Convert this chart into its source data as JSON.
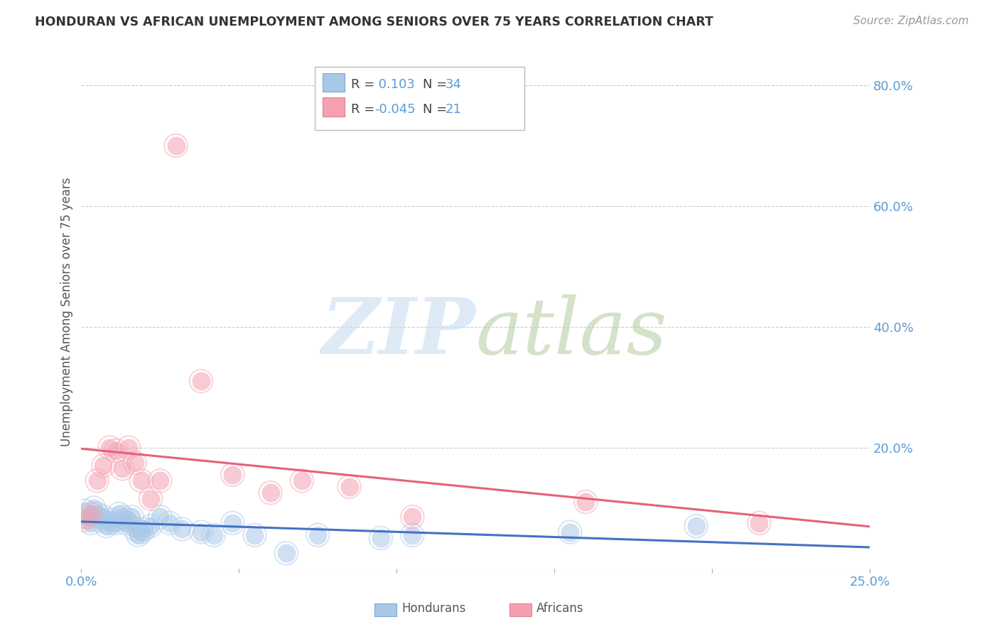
{
  "title": "HONDURAN VS AFRICAN UNEMPLOYMENT AMONG SENIORS OVER 75 YEARS CORRELATION CHART",
  "source": "Source: ZipAtlas.com",
  "ylabel": "Unemployment Among Seniors over 75 years",
  "xlim": [
    0.0,
    0.25
  ],
  "ylim": [
    0.0,
    0.85
  ],
  "xticks": [
    0.0,
    0.05,
    0.1,
    0.15,
    0.2,
    0.25
  ],
  "xticklabels": [
    "0.0%",
    "",
    "",
    "",
    "",
    "25.0%"
  ],
  "yticks": [
    0.0,
    0.2,
    0.4,
    0.6,
    0.8
  ],
  "yticklabels": [
    "",
    "20.0%",
    "40.0%",
    "60.0%",
    "80.0%"
  ],
  "background_color": "#ffffff",
  "grid_color": "#cccccc",
  "title_color": "#333333",
  "right_axis_color": "#5b9bd5",
  "honduran_color": "#a8c8e8",
  "african_color": "#f4a0b0",
  "honduran_line_color": "#4472c4",
  "african_line_color": "#e8607a",
  "legend_R1": "0.103",
  "legend_N1": "34",
  "legend_R2": "-0.045",
  "legend_N2": "21",
  "honduran_x": [
    0.001,
    0.002,
    0.003,
    0.004,
    0.005,
    0.006,
    0.007,
    0.008,
    0.009,
    0.01,
    0.011,
    0.012,
    0.013,
    0.014,
    0.015,
    0.016,
    0.017,
    0.018,
    0.019,
    0.02,
    0.022,
    0.025,
    0.028,
    0.032,
    0.038,
    0.042,
    0.048,
    0.055,
    0.065,
    0.075,
    0.095,
    0.105,
    0.155,
    0.195
  ],
  "honduran_y": [
    0.095,
    0.085,
    0.075,
    0.1,
    0.09,
    0.08,
    0.085,
    0.07,
    0.075,
    0.08,
    0.075,
    0.09,
    0.085,
    0.075,
    0.08,
    0.085,
    0.065,
    0.055,
    0.06,
    0.065,
    0.07,
    0.085,
    0.075,
    0.065,
    0.06,
    0.055,
    0.075,
    0.055,
    0.025,
    0.055,
    0.05,
    0.055,
    0.06,
    0.07
  ],
  "african_x": [
    0.001,
    0.003,
    0.005,
    0.007,
    0.009,
    0.011,
    0.013,
    0.015,
    0.017,
    0.019,
    0.022,
    0.025,
    0.03,
    0.038,
    0.048,
    0.06,
    0.07,
    0.085,
    0.105,
    0.16,
    0.215
  ],
  "african_y": [
    0.08,
    0.09,
    0.145,
    0.17,
    0.2,
    0.195,
    0.165,
    0.2,
    0.175,
    0.145,
    0.115,
    0.145,
    0.7,
    0.31,
    0.155,
    0.125,
    0.145,
    0.135,
    0.085,
    0.11,
    0.075
  ]
}
